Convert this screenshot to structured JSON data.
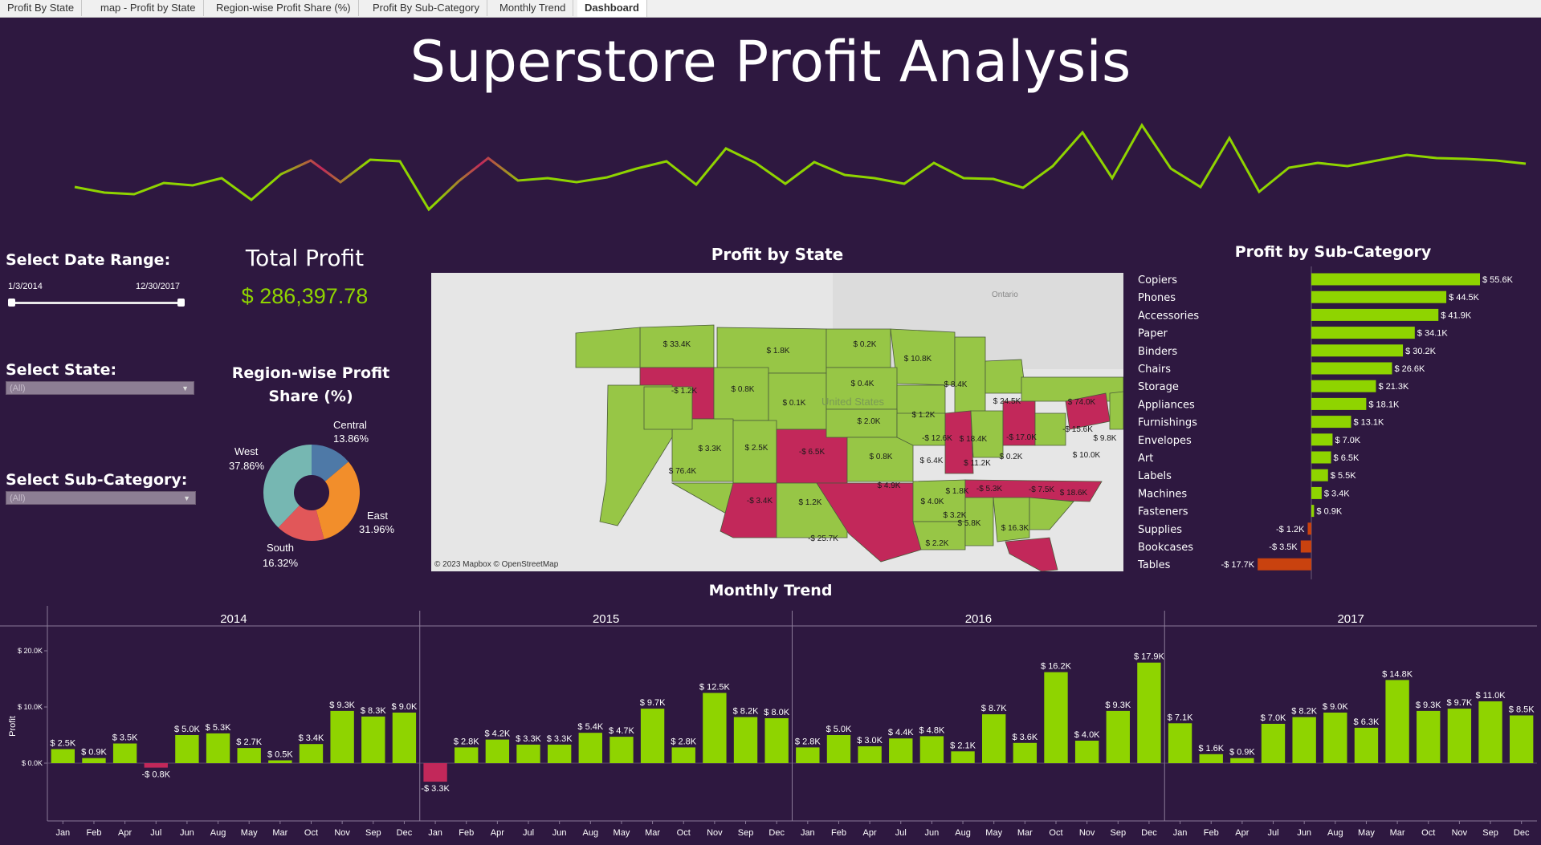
{
  "tabs": [
    "Profit By State",
    "map - Profit by State",
    "Region-wise Profit Share (%)",
    "Profit By Sub-Category",
    "Monthly Trend",
    "Dashboard"
  ],
  "active_tab": "Dashboard",
  "title": "Superstore Profit Analysis",
  "filters": {
    "date_label": "Select Date Range:",
    "date_start": "1/3/2014",
    "date_end": "12/30/2017",
    "state_label": "Select State:",
    "state_value": "(All)",
    "subcat_label": "Select Sub-Category:",
    "subcat_value": "(All)"
  },
  "kpi": {
    "label": "Total Profit",
    "value": "$ 286,397.78"
  },
  "colors": {
    "positive": "#8fd400",
    "negative": "#c2285a",
    "negative_bar": "#c9420f",
    "background": "#2e1840",
    "sparkline": "#8fd400"
  },
  "donut": {
    "title": "Region-wise Profit Share (%)",
    "slices": [
      {
        "name": "Central",
        "pct": "13.86%",
        "value": 13.86,
        "color": "#4e79a7"
      },
      {
        "name": "East",
        "pct": "31.96%",
        "value": 31.96,
        "color": "#f28e2b"
      },
      {
        "name": "South",
        "pct": "16.32%",
        "value": 16.32,
        "color": "#e15759"
      },
      {
        "name": "West",
        "pct": "37.86%",
        "value": 37.86,
        "color": "#76b7b2"
      }
    ]
  },
  "map": {
    "title": "Profit by State",
    "credit": "© 2023 Mapbox  © OpenStreetMap",
    "places": [
      "Ontario",
      "United States"
    ],
    "labels": [
      "$ 33.4K",
      "$ 1.8K",
      "$ 0.2K",
      "$ 10.8K",
      "-$ 1.2K",
      "$ 0.8K",
      "$ 0.1K",
      "$ 0.4K",
      "$ 8.4K",
      "$ 24.5K",
      "$ 74.0K",
      "$ 1.2K",
      "$ 3.3K",
      "$ 2.5K",
      "-$ 6.5K",
      "$ 2.0K",
      "-$ 12.6K",
      "$ 18.4K",
      "-$ 17.0K",
      "-$ 15.6K",
      "$ 9.8K",
      "$ 0.8K",
      "$ 6.4K",
      "$ 11.2K",
      "$ 0.2K",
      "$ 10.0K",
      "$ 76.4K",
      "$ 4.9K",
      "-$ 5.3K",
      "-$ 7.5K",
      "$ 18.6K",
      "-$ 3.4K",
      "$ 1.2K",
      "$ 4.0K",
      "$ 1.8K",
      "$ 3.2K",
      "$ 5.8K",
      "$ 16.3K",
      "-$ 25.7K",
      "$ 2.2K"
    ]
  },
  "subcategory": {
    "title": "Profit by Sub-Category",
    "items": [
      {
        "name": "Copiers",
        "value": 55.6,
        "label": "$ 55.6K"
      },
      {
        "name": "Phones",
        "value": 44.5,
        "label": "$ 44.5K"
      },
      {
        "name": "Accessories",
        "value": 41.9,
        "label": "$ 41.9K"
      },
      {
        "name": "Paper",
        "value": 34.1,
        "label": "$ 34.1K"
      },
      {
        "name": "Binders",
        "value": 30.2,
        "label": "$ 30.2K"
      },
      {
        "name": "Chairs",
        "value": 26.6,
        "label": "$ 26.6K"
      },
      {
        "name": "Storage",
        "value": 21.3,
        "label": "$ 21.3K"
      },
      {
        "name": "Appliances",
        "value": 18.1,
        "label": "$ 18.1K"
      },
      {
        "name": "Furnishings",
        "value": 13.1,
        "label": "$ 13.1K"
      },
      {
        "name": "Envelopes",
        "value": 7.0,
        "label": "$ 7.0K"
      },
      {
        "name": "Art",
        "value": 6.5,
        "label": "$ 6.5K"
      },
      {
        "name": "Labels",
        "value": 5.5,
        "label": "$ 5.5K"
      },
      {
        "name": "Machines",
        "value": 3.4,
        "label": "$ 3.4K"
      },
      {
        "name": "Fasteners",
        "value": 0.9,
        "label": "$ 0.9K"
      },
      {
        "name": "Supplies",
        "value": -1.2,
        "label": "-$ 1.2K"
      },
      {
        "name": "Bookcases",
        "value": -3.5,
        "label": "-$ 3.5K"
      },
      {
        "name": "Tables",
        "value": -17.7,
        "label": "-$ 17.7K"
      }
    ]
  },
  "chart_data": {
    "type": "bar",
    "title": "Monthly Trend",
    "ylabel": "Profit",
    "ylim": [
      -5,
      22
    ],
    "yticks": [
      "$ 20.0K",
      "$ 10.0K",
      "$ 0.0K"
    ],
    "years": [
      {
        "year": "2014",
        "months": [
          "Jan",
          "Feb",
          "Apr",
          "Jul",
          "Jun",
          "Aug",
          "May",
          "Mar",
          "Oct",
          "Nov",
          "Sep",
          "Dec"
        ],
        "values": [
          2.5,
          0.9,
          3.5,
          -0.8,
          5.0,
          5.3,
          2.7,
          0.5,
          3.4,
          9.3,
          8.3,
          9.0
        ],
        "labels": [
          "$ 2.5K",
          "$ 0.9K",
          "$ 3.5K",
          "-$ 0.8K",
          "$ 5.0K",
          "$ 5.3K",
          "$ 2.7K",
          "$ 0.5K",
          "$ 3.4K",
          "$ 9.3K",
          "$ 8.3K",
          "$ 9.0K"
        ]
      },
      {
        "year": "2015",
        "months": [
          "Jan",
          "Feb",
          "Apr",
          "Jul",
          "Jun",
          "Aug",
          "May",
          "Mar",
          "Oct",
          "Nov",
          "Sep",
          "Dec"
        ],
        "values": [
          -3.3,
          2.8,
          4.2,
          3.3,
          3.3,
          5.4,
          4.7,
          9.7,
          2.8,
          12.5,
          8.2,
          8.0
        ],
        "labels": [
          "-$ 3.3K",
          "$ 2.8K",
          "$ 4.2K",
          "$ 3.3K",
          "$ 3.3K",
          "$ 5.4K",
          "$ 4.7K",
          "$ 9.7K",
          "$ 2.8K",
          "$ 12.5K",
          "$ 8.2K",
          "$ 8.0K"
        ]
      },
      {
        "year": "2016",
        "months": [
          "Jan",
          "Feb",
          "Apr",
          "Jul",
          "Jun",
          "Aug",
          "May",
          "Mar",
          "Oct",
          "Nov",
          "Sep",
          "Dec"
        ],
        "values": [
          2.8,
          5.0,
          3.0,
          4.4,
          4.8,
          2.1,
          8.7,
          3.6,
          16.2,
          4.0,
          9.3,
          17.9
        ],
        "labels": [
          "$ 2.8K",
          "$ 5.0K",
          "$ 3.0K",
          "$ 4.4K",
          "$ 4.8K",
          "$ 2.1K",
          "$ 8.7K",
          "$ 3.6K",
          "$ 16.2K",
          "$ 4.0K",
          "$ 9.3K",
          "$ 17.9K"
        ]
      },
      {
        "year": "2017",
        "months": [
          "Jan",
          "Feb",
          "Apr",
          "Jul",
          "Jun",
          "Aug",
          "May",
          "Mar",
          "Oct",
          "Nov",
          "Sep",
          "Dec"
        ],
        "values": [
          7.1,
          1.6,
          0.9,
          7.0,
          8.2,
          9.0,
          6.3,
          14.8,
          9.3,
          9.7,
          11.0,
          8.5
        ],
        "labels": [
          "$ 7.1K",
          "$ 1.6K",
          "$ 0.9K",
          "$ 7.0K",
          "$ 8.2K",
          "$ 9.0K",
          "$ 6.3K",
          "$ 14.8K",
          "$ 9.3K",
          "$ 9.7K",
          "$ 11.0K",
          "$ 8.5K"
        ]
      }
    ]
  }
}
